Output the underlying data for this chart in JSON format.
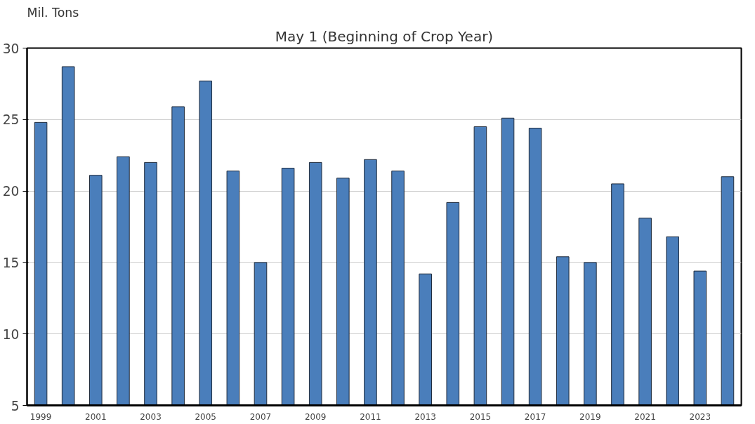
{
  "chart_data": {
    "type": "bar",
    "title": "May 1 (Beginning of Crop Year)",
    "ylabel": "Mil. Tons",
    "categories": [
      "1999",
      null,
      "2001",
      null,
      "2003",
      null,
      "2005",
      null,
      "2007",
      null,
      "2009",
      null,
      "2011",
      null,
      "2013",
      null,
      "2015",
      null,
      "2017",
      null,
      "2019",
      null,
      "2021",
      null,
      "2023",
      null
    ],
    "values": [
      24.8,
      28.7,
      21.1,
      22.4,
      22.0,
      25.9,
      27.7,
      21.4,
      15.0,
      21.6,
      22.0,
      20.9,
      22.2,
      21.4,
      14.2,
      19.2,
      24.5,
      25.1,
      24.4,
      15.4,
      15.0,
      20.5,
      18.1,
      16.8,
      14.4,
      21.0
    ],
    "color": "#4a7ebb",
    "ylim": [
      5,
      30
    ],
    "yticks": [
      5,
      10,
      15,
      20,
      25,
      30
    ],
    "grid": "y"
  }
}
